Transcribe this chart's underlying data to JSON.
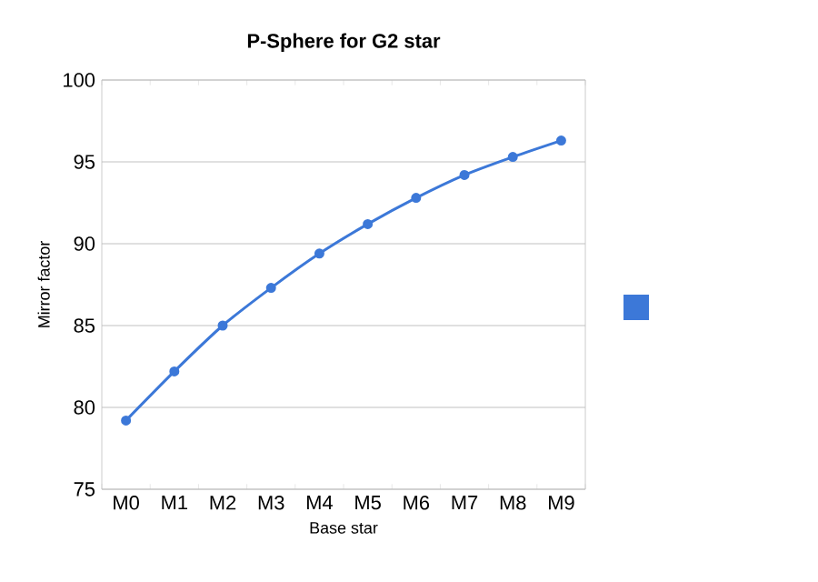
{
  "chart_data": {
    "type": "line",
    "title": "P-Sphere for G2 star",
    "xlabel": "Base star",
    "ylabel": "Mirror factor",
    "categories": [
      "M0",
      "M1",
      "M2",
      "M3",
      "M4",
      "M5",
      "M6",
      "M7",
      "M8",
      "M9"
    ],
    "series": [
      {
        "color": "#3c78d8",
        "values": [
          79.2,
          82.2,
          85.0,
          87.3,
          89.4,
          91.2,
          92.8,
          94.2,
          95.3,
          96.3
        ]
      }
    ],
    "ylim": [
      75,
      100
    ],
    "yticks": [
      75,
      80,
      85,
      90,
      95,
      100
    ],
    "grid": "y",
    "marker": "circle",
    "line_style": "solid"
  }
}
